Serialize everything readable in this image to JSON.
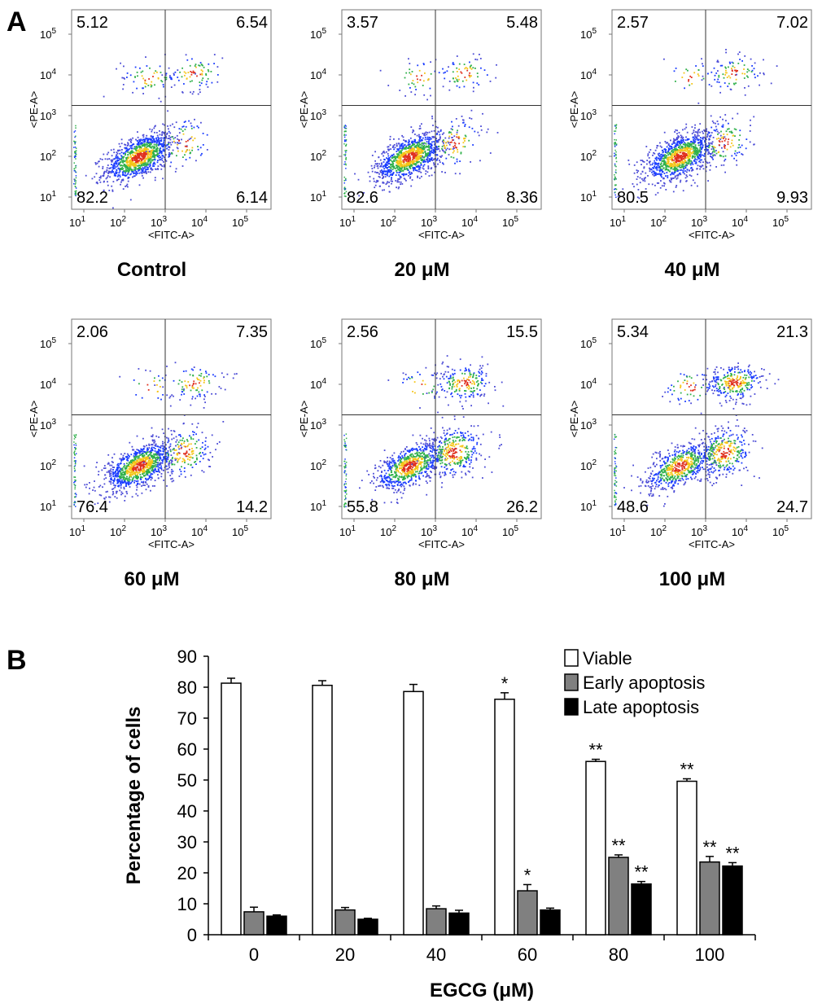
{
  "panel_a": {
    "label": "A",
    "x_axis_label": "<FITC-A>",
    "y_axis_label": "<PE-A>",
    "tick_base": "10",
    "tick_exponents": [
      "1",
      "2",
      "3",
      "4",
      "5"
    ]
  },
  "panel_b": {
    "label": "B"
  },
  "chart_data": [
    {
      "type": "scatter",
      "subtype": "flow-cytometry-density-plots",
      "x_axis": "<FITC-A>",
      "y_axis": "<PE-A>",
      "scale": "log",
      "axis_range_log10": [
        0.7,
        5.6
      ],
      "gate_log10": {
        "x": 3.0,
        "y": 3.25
      },
      "plots": [
        {
          "title": "Control",
          "quadrants": {
            "upper_left": "5.12",
            "upper_right": "6.54",
            "lower_left": "82.2",
            "lower_right": "6.14"
          }
        },
        {
          "title": "20 μM",
          "quadrants": {
            "upper_left": "3.57",
            "upper_right": "5.48",
            "lower_left": "82.6",
            "lower_right": "8.36"
          }
        },
        {
          "title": "40 μM",
          "quadrants": {
            "upper_left": "2.57",
            "upper_right": "7.02",
            "lower_left": "80.5",
            "lower_right": "9.93"
          }
        },
        {
          "title": "60 μM",
          "quadrants": {
            "upper_left": "2.06",
            "upper_right": "7.35",
            "lower_left": "76.4",
            "lower_right": "14.2"
          }
        },
        {
          "title": "80 μM",
          "quadrants": {
            "upper_left": "2.56",
            "upper_right": "15.5",
            "lower_left": "55.8",
            "lower_right": "26.2"
          }
        },
        {
          "title": "100 μM",
          "quadrants": {
            "upper_left": "5.34",
            "upper_right": "21.3",
            "lower_left": "48.6",
            "lower_right": "24.7"
          }
        }
      ]
    },
    {
      "type": "bar",
      "xlabel": "EGCG (μM)",
      "ylabel": "Percentage of cells",
      "ylim": [
        0,
        90
      ],
      "yticks": [
        0,
        10,
        20,
        30,
        40,
        50,
        60,
        70,
        80,
        90
      ],
      "categories": [
        "0",
        "20",
        "40",
        "60",
        "80",
        "100"
      ],
      "legend_position": "top-right",
      "series": [
        {
          "name": "Viable",
          "color": "#ffffff",
          "values": [
            81.3,
            80.6,
            78.6,
            76.1,
            56.0,
            49.6
          ],
          "errors": [
            1.6,
            1.5,
            2.3,
            2.1,
            0.7,
            0.8
          ],
          "significance": [
            "",
            "",
            "",
            "*",
            "**",
            "**"
          ]
        },
        {
          "name": "Early apoptosis",
          "color": "#808080",
          "values": [
            7.4,
            8.0,
            8.4,
            14.2,
            25.0,
            23.5
          ],
          "errors": [
            1.5,
            0.8,
            0.9,
            2.0,
            0.8,
            1.8
          ],
          "significance": [
            "",
            "",
            "",
            "*",
            "**",
            "**"
          ]
        },
        {
          "name": "Late apoptosis",
          "color": "#000000",
          "values": [
            6.0,
            5.0,
            7.0,
            8.0,
            16.4,
            22.2
          ],
          "errors": [
            0.4,
            0.3,
            0.9,
            0.6,
            0.8,
            1.1
          ],
          "significance": [
            "",
            "",
            "",
            "",
            "**",
            "**"
          ]
        }
      ]
    }
  ]
}
